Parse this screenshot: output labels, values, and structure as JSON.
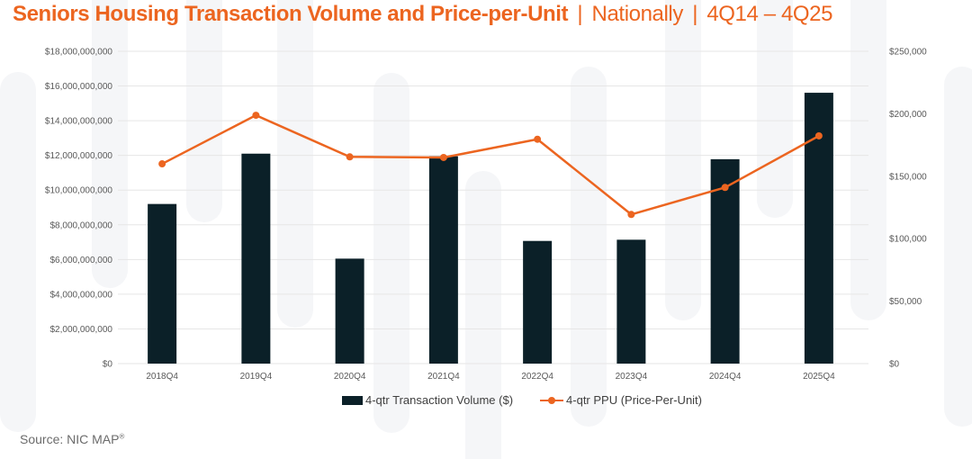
{
  "title": {
    "main": "Seniors Housing Transaction Volume and Price-per-Unit",
    "separator": "|",
    "region": "Nationally",
    "period": "4Q14 – 4Q25"
  },
  "source": {
    "text": "Source: NIC MAP",
    "mark": "®"
  },
  "colors": {
    "title": "#ec6520",
    "bar": "#0b2028",
    "line": "#ec6520",
    "grid": "#e6e6e6",
    "background_shapes": "#f5f6f8"
  },
  "chart_data": {
    "type": "bar",
    "title": "Seniors Housing Transaction Volume and Price-per-Unit | Nationally | 4Q14 – 4Q25",
    "xlabel": "",
    "ylabel": "",
    "y2label": "",
    "categories": [
      "2018Q4",
      "2019Q4",
      "2020Q4",
      "2021Q4",
      "2022Q4",
      "2023Q4",
      "2024Q4",
      "2025Q4"
    ],
    "series": [
      {
        "name": "4-qtr Transaction Volume ($)",
        "type": "bar",
        "axis": "left",
        "values": [
          9200000000,
          12100000000,
          6050000000,
          11950000000,
          7070000000,
          7140000000,
          11780000000,
          15610000000
        ]
      },
      {
        "name": "4-qtr PPU (Price-Per-Unit)",
        "type": "line",
        "axis": "right",
        "values": [
          159900,
          198800,
          165500,
          165000,
          179600,
          119400,
          141000,
          182300
        ]
      }
    ],
    "ylim": [
      0,
      18000000000
    ],
    "y2lim": [
      0,
      250000
    ],
    "yticks": [
      "$0",
      "$2,000,000,000",
      "$4,000,000,000",
      "$6,000,000,000",
      "$8,000,000,000",
      "$10,000,000,000",
      "$12,000,000,000",
      "$14,000,000,000",
      "$16,000,000,000",
      "$18,000,000,000"
    ],
    "y2ticks": [
      "$0",
      "$50,000",
      "$100,000",
      "$150,000",
      "$200,000",
      "$250,000"
    ],
    "grid": true,
    "legend": "bottom-center"
  }
}
